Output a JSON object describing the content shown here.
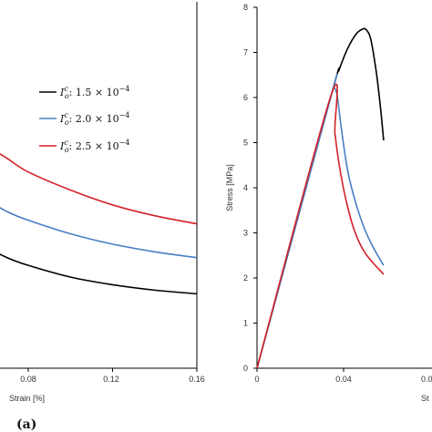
{
  "chart_data": [
    {
      "type": "line",
      "panel": "(a)",
      "xlabel": "Strain [%]",
      "ylabel": "",
      "xticks": [
        "0.08",
        "0.12",
        "0.16"
      ],
      "xlim_visible": [
        0.0465,
        0.16
      ],
      "legend_position": "upper-right",
      "series": [
        {
          "name": "I_o^c: 1.5 × 10^-4",
          "color": "#000000",
          "points": [
            [
              0.0465,
              3.15
            ],
            [
              0.06,
              2.7
            ],
            [
              0.07,
              2.45
            ],
            [
              0.08,
              2.28
            ],
            [
              0.1,
              2.02
            ],
            [
              0.12,
              1.85
            ],
            [
              0.14,
              1.73
            ],
            [
              0.16,
              1.65
            ]
          ]
        },
        {
          "name": "I_o^c: 2.0 × 10^-4",
          "color": "#4a7ec2",
          "points": [
            [
              0.0465,
              4.2
            ],
            [
              0.06,
              3.75
            ],
            [
              0.07,
              3.47
            ],
            [
              0.08,
              3.28
            ],
            [
              0.1,
              2.98
            ],
            [
              0.12,
              2.75
            ],
            [
              0.14,
              2.58
            ],
            [
              0.16,
              2.45
            ]
          ]
        },
        {
          "name": "I_o^c: 2.5 × 10^-4",
          "color": "#d42027",
          "points": [
            [
              0.0465,
              5.45
            ],
            [
              0.06,
              4.95
            ],
            [
              0.07,
              4.65
            ],
            [
              0.08,
              4.35
            ],
            [
              0.1,
              3.95
            ],
            [
              0.12,
              3.62
            ],
            [
              0.14,
              3.38
            ],
            [
              0.16,
              3.2
            ]
          ]
        }
      ]
    },
    {
      "type": "line",
      "xlabel": "St",
      "ylabel": "Stress [MPa]",
      "xticks": [
        "0",
        "0.04",
        "0.0"
      ],
      "yticks": [
        "0",
        "1",
        "2",
        "3",
        "4",
        "5",
        "6",
        "7",
        "8"
      ],
      "ylim": [
        0,
        8
      ],
      "xlim_visible": [
        0,
        0.0585
      ],
      "series": [
        {
          "name": "I_o^c: 1.5 × 10^-4",
          "color": "#000000",
          "points": [
            [
              0,
              0
            ],
            [
              0.034,
              6.0
            ],
            [
              0.038,
              6.62
            ],
            [
              0.042,
              7.1
            ],
            [
              0.046,
              7.42
            ],
            [
              0.049,
              7.52
            ],
            [
              0.0505,
              7.5
            ],
            [
              0.0525,
              7.3
            ],
            [
              0.055,
              6.6
            ],
            [
              0.057,
              5.8
            ],
            [
              0.0585,
              5.05
            ]
          ]
        },
        {
          "name": "I_o^c: 2.0 × 10^-4",
          "color": "#4a7ec2",
          "points": [
            [
              0,
              0
            ],
            [
              0.034,
              6.0
            ],
            [
              0.0355,
              6.2
            ],
            [
              0.037,
              6.05
            ],
            [
              0.039,
              5.3
            ],
            [
              0.042,
              4.35
            ],
            [
              0.046,
              3.6
            ],
            [
              0.05,
              3.05
            ],
            [
              0.054,
              2.65
            ],
            [
              0.0585,
              2.28
            ]
          ]
        },
        {
          "name": "I_o^c: 2.5 × 10^-4",
          "color": "#d42027",
          "points": [
            [
              0,
              0
            ],
            [
              0.034,
              6.02
            ],
            [
              0.036,
              5.2
            ],
            [
              0.038,
              4.5
            ],
            [
              0.041,
              3.75
            ],
            [
              0.045,
              3.05
            ],
            [
              0.05,
              2.55
            ],
            [
              0.0585,
              2.08
            ]
          ]
        }
      ]
    }
  ],
  "legend": [
    {
      "base": "1.5",
      "color": "#000000"
    },
    {
      "base": "2.0",
      "color": "#4a7ec2"
    },
    {
      "base": "2.5",
      "color": "#d42027"
    }
  ]
}
